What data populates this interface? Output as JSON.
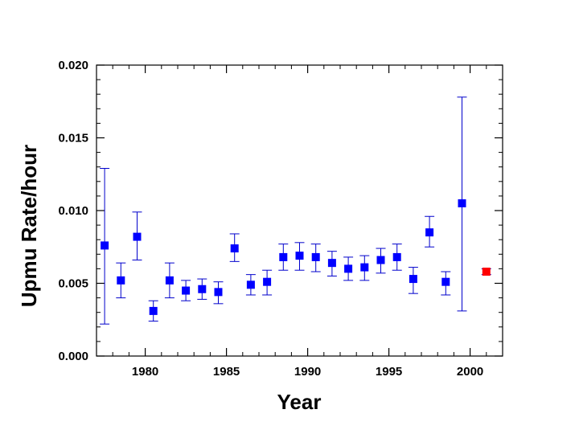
{
  "chart_data": {
    "type": "scatter",
    "title": "",
    "xlabel": "Year",
    "ylabel": "Upmu Rate/hour",
    "xlim": [
      1977,
      2002
    ],
    "ylim": [
      0.0,
      0.02
    ],
    "x_ticks": [
      1980,
      1985,
      1990,
      1995,
      2000
    ],
    "x_tick_labels": [
      "1980",
      "1985",
      "1990",
      "1995",
      "2000"
    ],
    "y_ticks": [
      0.0,
      0.005,
      0.01,
      0.015,
      0.02
    ],
    "y_tick_labels": [
      "0.000",
      "0.005",
      "0.010",
      "0.015",
      "0.020"
    ],
    "grid": false,
    "colors": {
      "main": "#0000ff",
      "highlight": "#ff0000",
      "error_bar": "#0000cc"
    },
    "series": [
      {
        "points": [
          {
            "x": 1977.5,
            "y": 0.0076,
            "lo": 0.0022,
            "hi": 0.0129
          },
          {
            "x": 1978.5,
            "y": 0.0052,
            "lo": 0.004,
            "hi": 0.0064
          },
          {
            "x": 1979.5,
            "y": 0.0082,
            "lo": 0.0066,
            "hi": 0.0099
          },
          {
            "x": 1980.5,
            "y": 0.0031,
            "lo": 0.0024,
            "hi": 0.0038
          },
          {
            "x": 1981.5,
            "y": 0.0052,
            "lo": 0.004,
            "hi": 0.0064
          },
          {
            "x": 1982.5,
            "y": 0.0045,
            "lo": 0.0038,
            "hi": 0.0052
          },
          {
            "x": 1983.5,
            "y": 0.0046,
            "lo": 0.0039,
            "hi": 0.0053
          },
          {
            "x": 1984.5,
            "y": 0.0044,
            "lo": 0.0036,
            "hi": 0.0051
          },
          {
            "x": 1985.5,
            "y": 0.0074,
            "lo": 0.0065,
            "hi": 0.0084
          },
          {
            "x": 1986.5,
            "y": 0.0049,
            "lo": 0.0042,
            "hi": 0.0056
          },
          {
            "x": 1987.5,
            "y": 0.0051,
            "lo": 0.0042,
            "hi": 0.0059
          },
          {
            "x": 1988.5,
            "y": 0.0068,
            "lo": 0.0059,
            "hi": 0.0077
          },
          {
            "x": 1989.5,
            "y": 0.0069,
            "lo": 0.0059,
            "hi": 0.0078
          },
          {
            "x": 1990.5,
            "y": 0.0068,
            "lo": 0.0058,
            "hi": 0.0077
          },
          {
            "x": 1991.5,
            "y": 0.0064,
            "lo": 0.0055,
            "hi": 0.0072
          },
          {
            "x": 1992.5,
            "y": 0.006,
            "lo": 0.0052,
            "hi": 0.0068
          },
          {
            "x": 1993.5,
            "y": 0.0061,
            "lo": 0.0052,
            "hi": 0.0069
          },
          {
            "x": 1994.5,
            "y": 0.0066,
            "lo": 0.0057,
            "hi": 0.0074
          },
          {
            "x": 1995.5,
            "y": 0.0068,
            "lo": 0.0059,
            "hi": 0.0077
          },
          {
            "x": 1996.5,
            "y": 0.0053,
            "lo": 0.0043,
            "hi": 0.0061
          },
          {
            "x": 1997.5,
            "y": 0.0085,
            "lo": 0.0075,
            "hi": 0.0096
          },
          {
            "x": 1998.5,
            "y": 0.0051,
            "lo": 0.0042,
            "hi": 0.0058
          },
          {
            "x": 1999.5,
            "y": 0.0105,
            "lo": 0.0031,
            "hi": 0.0178
          }
        ]
      },
      {
        "points": [
          {
            "x": 2001.0,
            "y": 0.0058,
            "lo": 0.0056,
            "hi": 0.006
          }
        ]
      }
    ]
  }
}
